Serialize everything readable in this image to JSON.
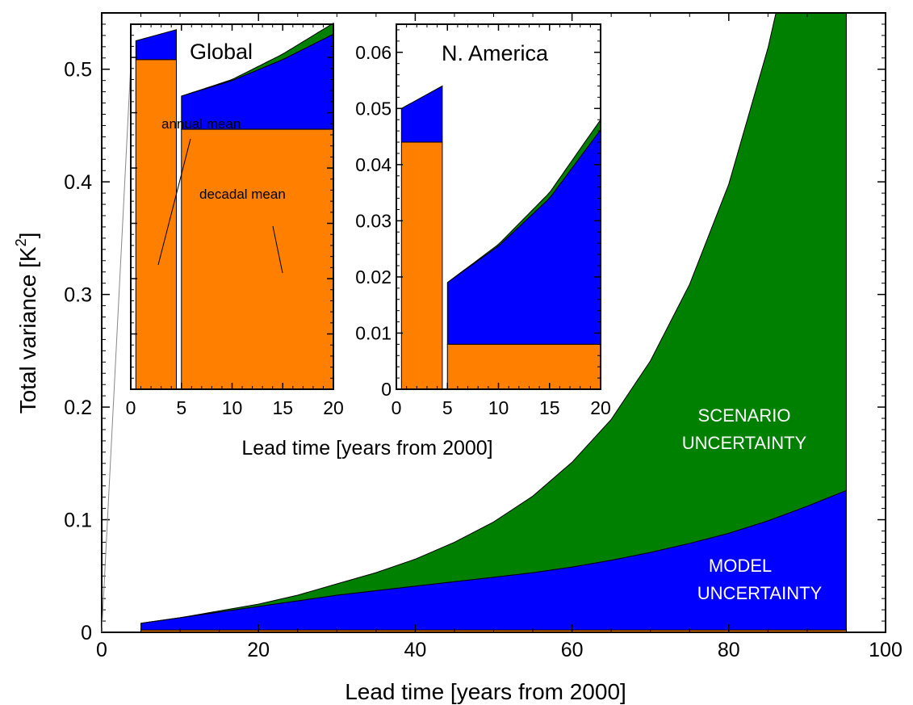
{
  "chart_data": [
    {
      "id": "main",
      "type": "area",
      "xlabel": "Lead time  [years from 2000]",
      "ylabel": "Total variance  [K",
      "ylabel_sup": "2",
      "ylabel_end": "]",
      "xlim": [
        0,
        100
      ],
      "ylim": [
        0,
        0.55
      ],
      "xticks": [
        0,
        20,
        40,
        60,
        80,
        100
      ],
      "yticks": [
        0,
        0.1,
        0.2,
        0.3,
        0.4,
        0.5
      ],
      "xtick_labels": [
        "0",
        "20",
        "40",
        "60",
        "80",
        "100"
      ],
      "ytick_labels": [
        "0",
        "0.1",
        "0.2",
        "0.3",
        "0.4",
        "0.5"
      ],
      "x": [
        5,
        10,
        15,
        20,
        25,
        30,
        35,
        40,
        45,
        50,
        55,
        60,
        65,
        70,
        75,
        80,
        85,
        90,
        95
      ],
      "series": [
        {
          "key": "internal",
          "color": "#ff8000",
          "values": [
            0.002,
            0.002,
            0.002,
            0.002,
            0.002,
            0.002,
            0.002,
            0.002,
            0.002,
            0.002,
            0.002,
            0.002,
            0.002,
            0.002,
            0.002,
            0.002,
            0.002,
            0.002,
            0.002
          ]
        },
        {
          "key": "model",
          "name": "MODEL UNCERTAINTY",
          "color": "#0000ff",
          "values": [
            0.006,
            0.011,
            0.016,
            0.021,
            0.026,
            0.031,
            0.035,
            0.039,
            0.043,
            0.047,
            0.051,
            0.056,
            0.062,
            0.069,
            0.077,
            0.086,
            0.097,
            0.11,
            0.124
          ]
        },
        {
          "key": "scenario",
          "name": "SCENARIO UNCERTAINTY",
          "color": "#008000",
          "values": [
            0,
            0,
            0.001,
            0.002,
            0.005,
            0.01,
            0.016,
            0.024,
            0.035,
            0.049,
            0.068,
            0.093,
            0.125,
            0.17,
            0.23,
            0.31,
            0.42,
            0.56,
            0.72
          ]
        }
      ],
      "labels": [
        "SCENARIO",
        "UNCERTAINTY",
        "MODEL",
        "UNCERTAINTY"
      ]
    },
    {
      "id": "inset-global",
      "type": "area",
      "title": "Global",
      "xlim": [
        0,
        20
      ],
      "ylim": [
        0,
        0.33
      ],
      "xticks": [
        0,
        5,
        10,
        15,
        20
      ],
      "xtick_labels": [
        "0",
        "5",
        "10",
        "15",
        "20"
      ],
      "annual_bar": {
        "x": [
          0.5,
          4.5
        ],
        "internal": 0.298,
        "model_top_left": 0.315,
        "model_top_right": 0.325
      },
      "decadal": {
        "x": [
          5,
          10,
          15,
          20
        ],
        "internal": [
          0.235,
          0.235,
          0.235,
          0.235
        ],
        "model_top": [
          0.265,
          0.279,
          0.298,
          0.321
        ],
        "scenario_top": [
          0.265,
          0.28,
          0.303,
          0.331
        ]
      },
      "annotations": [
        "annual mean",
        "decadal mean"
      ]
    },
    {
      "id": "inset-namerica",
      "type": "area",
      "title": "N. America",
      "xlim": [
        0,
        20
      ],
      "ylim": [
        0,
        0.065
      ],
      "xticks": [
        0,
        5,
        10,
        15,
        20
      ],
      "xtick_labels": [
        "0",
        "5",
        "10",
        "15",
        "20"
      ],
      "yticks": [
        0,
        0.01,
        0.02,
        0.03,
        0.04,
        0.05,
        0.06
      ],
      "ytick_labels": [
        "0",
        "0.01",
        "0.02",
        "0.03",
        "0.04",
        "0.05",
        "0.06"
      ],
      "annual_bar": {
        "x": [
          0.5,
          4.5
        ],
        "internal": 0.044,
        "model_top_left": 0.05,
        "model_top_right": 0.054
      },
      "decadal": {
        "x": [
          5,
          10,
          15,
          20
        ],
        "internal": [
          0.008,
          0.008,
          0.008,
          0.008
        ],
        "model_top": [
          0.019,
          0.0255,
          0.034,
          0.0462
        ],
        "scenario_top": [
          0.019,
          0.0258,
          0.035,
          0.048
        ]
      }
    }
  ],
  "inset_xlabel": "Lead time  [years from 2000]"
}
